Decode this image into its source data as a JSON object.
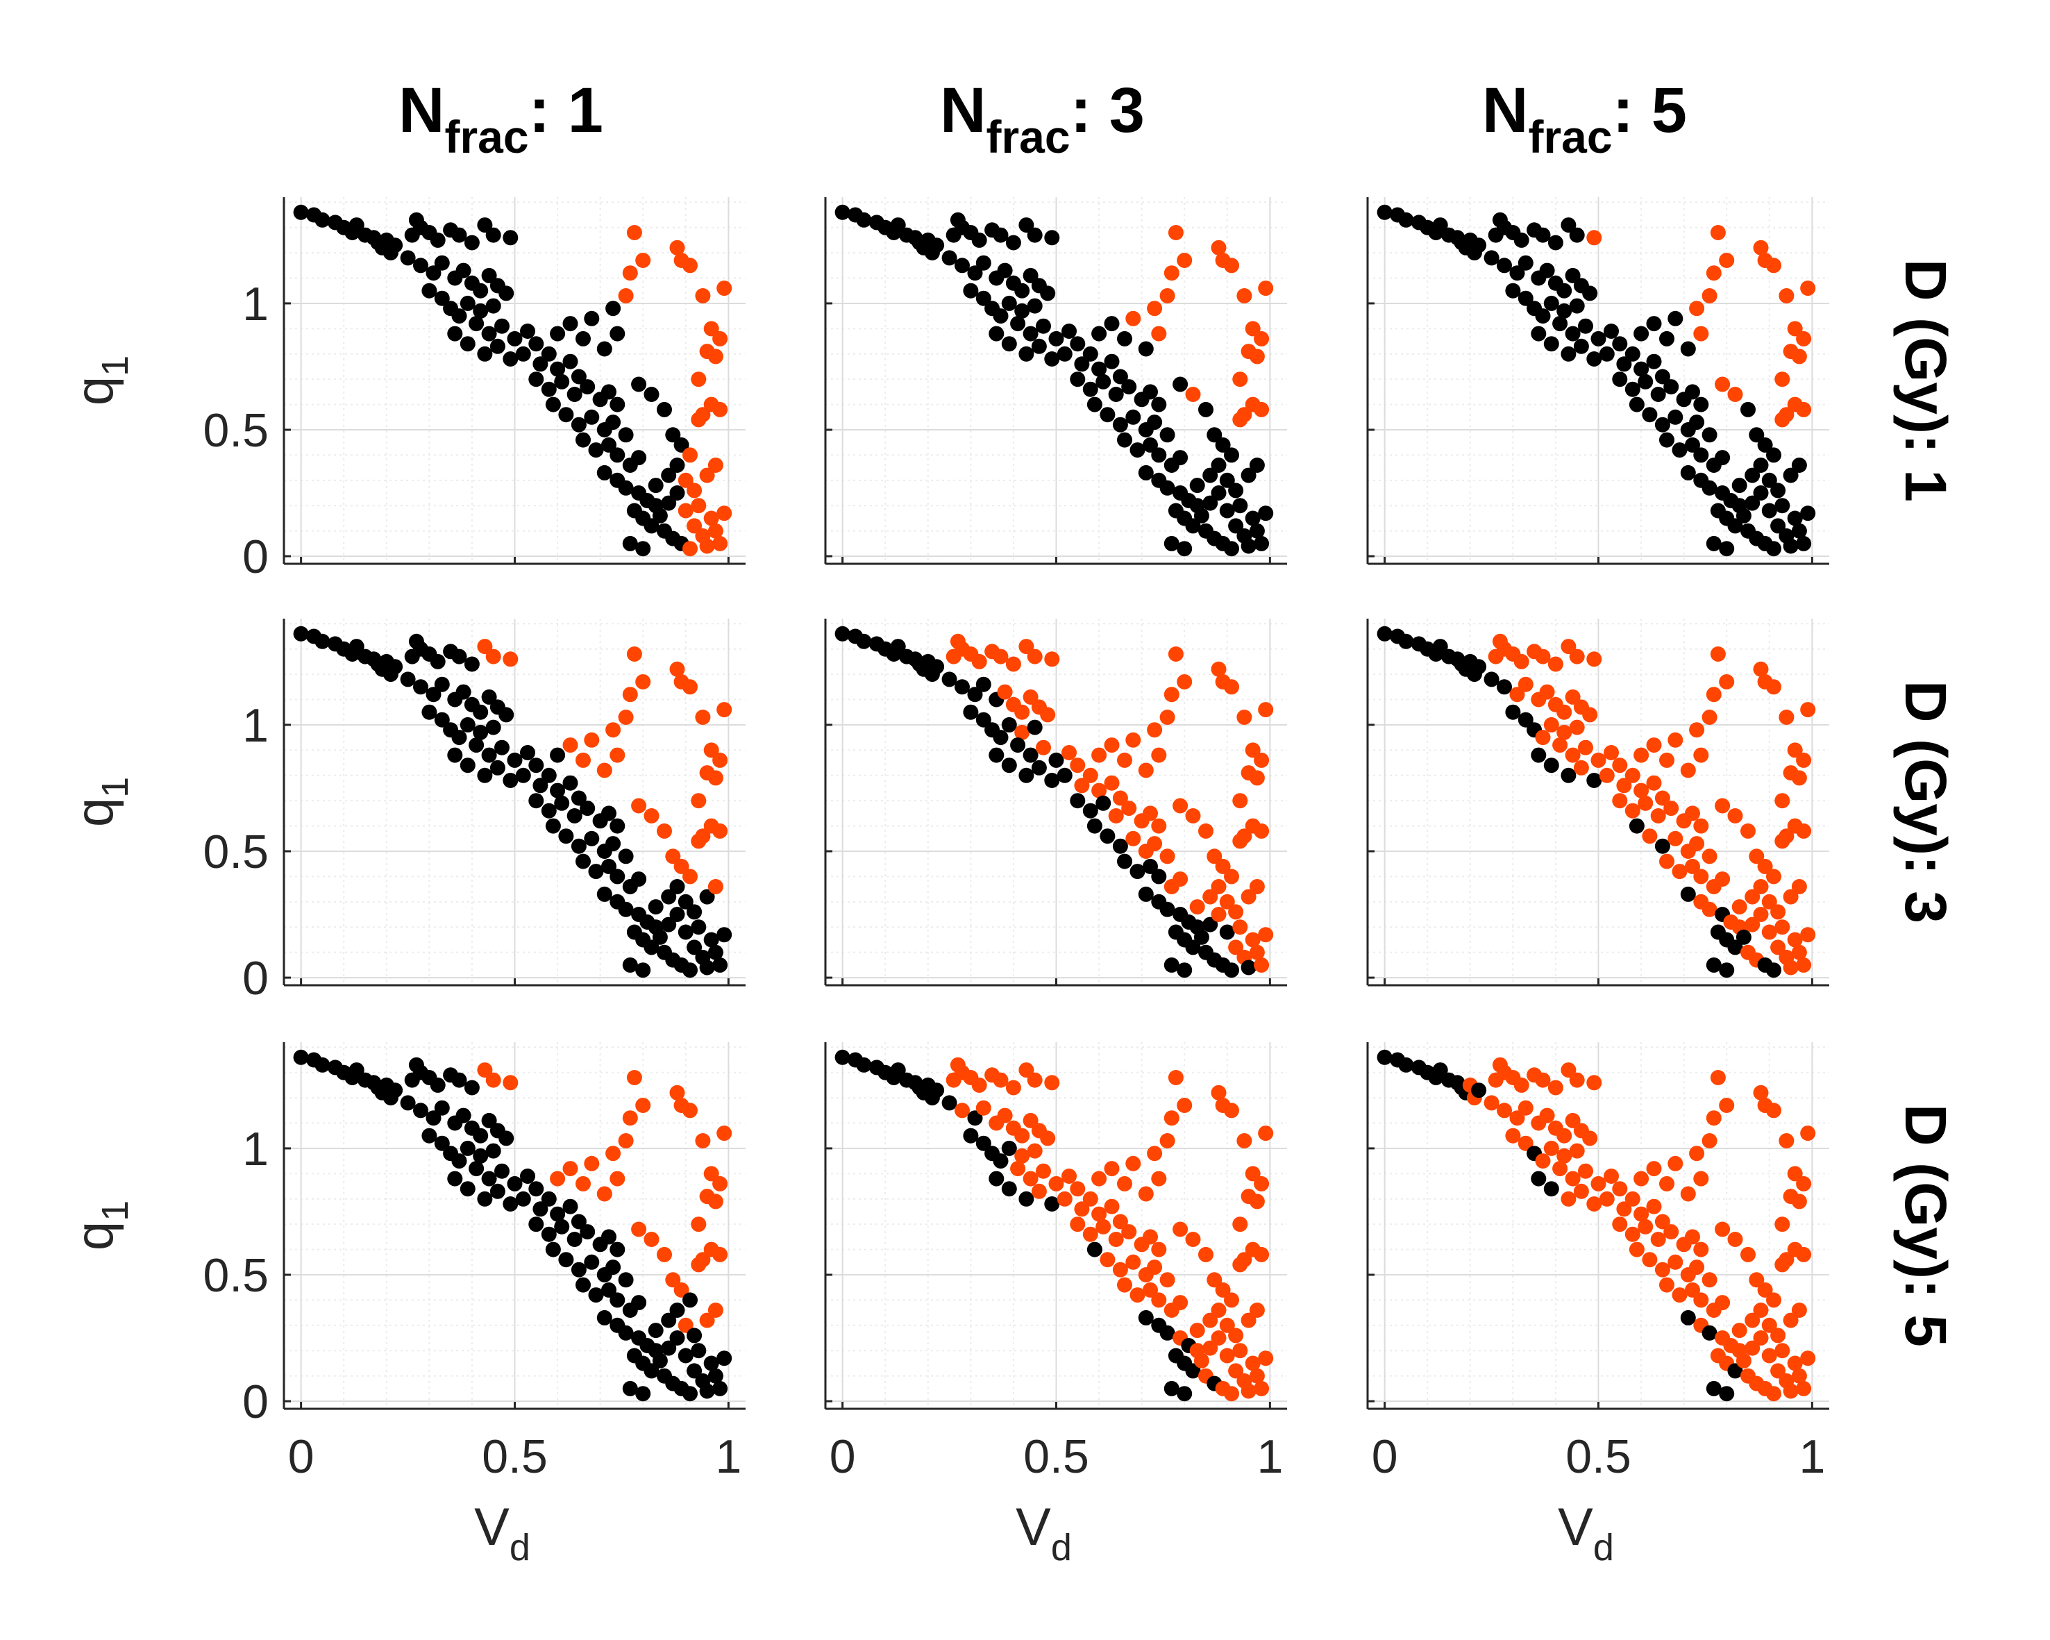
{
  "colors": {
    "black": "#000000",
    "orange": "#ff4500",
    "axis": "#262626",
    "grid": "#dcdcdc",
    "minor_grid": "#ececec"
  },
  "column_titles": [
    {
      "main": "N",
      "sub": "frac",
      "suffix": ": 1"
    },
    {
      "main": "N",
      "sub": "frac",
      "suffix": ": 3"
    },
    {
      "main": "N",
      "sub": "frac",
      "suffix": ": 5"
    }
  ],
  "row_titles": [
    "D (Gy): 1",
    "D (Gy): 3",
    "D (Gy): 5"
  ],
  "axes": {
    "xlabel": {
      "main": "V",
      "sub": "d"
    },
    "ylabel": {
      "main": "q",
      "sub": "1"
    },
    "xlim": [
      -0.04,
      1.04
    ],
    "ylim": [
      -0.03,
      1.42
    ],
    "xticks": [
      0,
      0.5,
      1
    ],
    "xtick_labels": [
      "0",
      "0.5",
      "1"
    ],
    "yticks": [
      0,
      0.5,
      1
    ],
    "ytick_labels": [
      "0",
      "0.5",
      "1"
    ],
    "grid": true,
    "minor_grid": true
  },
  "chart_data": {
    "type": "scatter",
    "layout": "3x3 small multiples",
    "columns": "N_frac: 1, 3, 5",
    "rows": "D (Gy): 1, 3, 5",
    "series": [
      {
        "color": "black"
      },
      {
        "color": "orange"
      }
    ],
    "points": [
      [
        0.0,
        1.36
      ],
      [
        0.03,
        1.35
      ],
      [
        0.05,
        1.33
      ],
      [
        0.08,
        1.32
      ],
      [
        0.1,
        1.3
      ],
      [
        0.12,
        1.28
      ],
      [
        0.13,
        1.31
      ],
      [
        0.15,
        1.27
      ],
      [
        0.17,
        1.26
      ],
      [
        0.18,
        1.24
      ],
      [
        0.19,
        1.22
      ],
      [
        0.2,
        1.25
      ],
      [
        0.21,
        1.2
      ],
      [
        0.22,
        1.23
      ],
      [
        0.26,
        1.27
      ],
      [
        0.27,
        1.33
      ],
      [
        0.28,
        1.3
      ],
      [
        0.3,
        1.28
      ],
      [
        0.32,
        1.25
      ],
      [
        0.35,
        1.29
      ],
      [
        0.37,
        1.27
      ],
      [
        0.4,
        1.24
      ],
      [
        0.43,
        1.31
      ],
      [
        0.45,
        1.27
      ],
      [
        0.49,
        1.26
      ],
      [
        0.25,
        1.18
      ],
      [
        0.28,
        1.15
      ],
      [
        0.31,
        1.12
      ],
      [
        0.33,
        1.16
      ],
      [
        0.36,
        1.1
      ],
      [
        0.38,
        1.13
      ],
      [
        0.4,
        1.08
      ],
      [
        0.42,
        1.05
      ],
      [
        0.44,
        1.11
      ],
      [
        0.46,
        1.07
      ],
      [
        0.48,
        1.04
      ],
      [
        0.3,
        1.05
      ],
      [
        0.33,
        1.02
      ],
      [
        0.35,
        0.98
      ],
      [
        0.37,
        0.95
      ],
      [
        0.39,
        1.0
      ],
      [
        0.42,
        0.97
      ],
      [
        0.45,
        0.99
      ],
      [
        0.41,
        0.92
      ],
      [
        0.44,
        0.88
      ],
      [
        0.47,
        0.91
      ],
      [
        0.5,
        0.86
      ],
      [
        0.53,
        0.89
      ],
      [
        0.55,
        0.84
      ],
      [
        0.36,
        0.88
      ],
      [
        0.39,
        0.84
      ],
      [
        0.43,
        0.8
      ],
      [
        0.46,
        0.83
      ],
      [
        0.49,
        0.78
      ],
      [
        0.52,
        0.8
      ],
      [
        0.56,
        0.76
      ],
      [
        0.58,
        0.8
      ],
      [
        0.6,
        0.74
      ],
      [
        0.63,
        0.77
      ],
      [
        0.65,
        0.71
      ],
      [
        0.55,
        0.7
      ],
      [
        0.58,
        0.66
      ],
      [
        0.61,
        0.69
      ],
      [
        0.64,
        0.64
      ],
      [
        0.67,
        0.67
      ],
      [
        0.7,
        0.62
      ],
      [
        0.72,
        0.65
      ],
      [
        0.74,
        0.6
      ],
      [
        0.59,
        0.6
      ],
      [
        0.62,
        0.56
      ],
      [
        0.65,
        0.52
      ],
      [
        0.68,
        0.55
      ],
      [
        0.71,
        0.5
      ],
      [
        0.73,
        0.53
      ],
      [
        0.76,
        0.48
      ],
      [
        0.66,
        0.46
      ],
      [
        0.69,
        0.42
      ],
      [
        0.72,
        0.44
      ],
      [
        0.74,
        0.4
      ],
      [
        0.77,
        0.36
      ],
      [
        0.79,
        0.39
      ],
      [
        0.71,
        0.33
      ],
      [
        0.74,
        0.3
      ],
      [
        0.76,
        0.27
      ],
      [
        0.79,
        0.25
      ],
      [
        0.81,
        0.22
      ],
      [
        0.83,
        0.2
      ],
      [
        0.78,
        0.18
      ],
      [
        0.8,
        0.15
      ],
      [
        0.82,
        0.12
      ],
      [
        0.85,
        0.1
      ],
      [
        0.87,
        0.07
      ],
      [
        0.89,
        0.05
      ],
      [
        0.91,
        0.03
      ],
      [
        0.77,
        0.05
      ],
      [
        0.8,
        0.03
      ],
      [
        0.84,
        0.16
      ],
      [
        0.86,
        0.21
      ],
      [
        0.88,
        0.25
      ],
      [
        0.9,
        0.18
      ],
      [
        0.92,
        0.12
      ],
      [
        0.94,
        0.08
      ],
      [
        0.95,
        0.04
      ],
      [
        0.83,
        0.28
      ],
      [
        0.86,
        0.32
      ],
      [
        0.88,
        0.36
      ],
      [
        0.9,
        0.3
      ],
      [
        0.92,
        0.26
      ],
      [
        0.93,
        0.2
      ],
      [
        0.96,
        0.15
      ],
      [
        0.97,
        0.1
      ],
      [
        0.98,
        0.05
      ],
      [
        0.99,
        0.17
      ],
      [
        0.6,
        0.88
      ],
      [
        0.63,
        0.92
      ],
      [
        0.66,
        0.86
      ],
      [
        0.68,
        0.94
      ],
      [
        0.71,
        0.82
      ],
      [
        0.74,
        0.88
      ],
      [
        0.76,
        1.03
      ],
      [
        0.73,
        0.98
      ],
      [
        0.79,
        0.68
      ],
      [
        0.82,
        0.64
      ],
      [
        0.85,
        0.58
      ],
      [
        0.87,
        0.48
      ],
      [
        0.89,
        0.44
      ],
      [
        0.91,
        0.4
      ],
      [
        0.93,
        0.54
      ],
      [
        0.95,
        0.32
      ],
      [
        0.94,
        0.56
      ],
      [
        0.96,
        0.6
      ],
      [
        0.98,
        0.58
      ],
      [
        0.97,
        0.36
      ],
      [
        0.93,
        0.7
      ],
      [
        0.95,
        0.81
      ],
      [
        0.97,
        0.79
      ],
      [
        0.98,
        0.86
      ],
      [
        0.96,
        0.9
      ],
      [
        0.99,
        1.06
      ],
      [
        0.94,
        1.03
      ],
      [
        0.88,
        1.22
      ],
      [
        0.89,
        1.17
      ],
      [
        0.91,
        1.15
      ],
      [
        0.78,
        1.28
      ],
      [
        0.8,
        1.17
      ],
      [
        0.77,
        1.12
      ]
    ],
    "orange_threshold": [
      [
        0.9,
        0.905,
        0.895
      ],
      [
        0.85,
        0.7,
        0.64
      ],
      [
        0.82,
        0.65,
        0.6
      ]
    ],
    "orange_fuzz": 0.04
  }
}
